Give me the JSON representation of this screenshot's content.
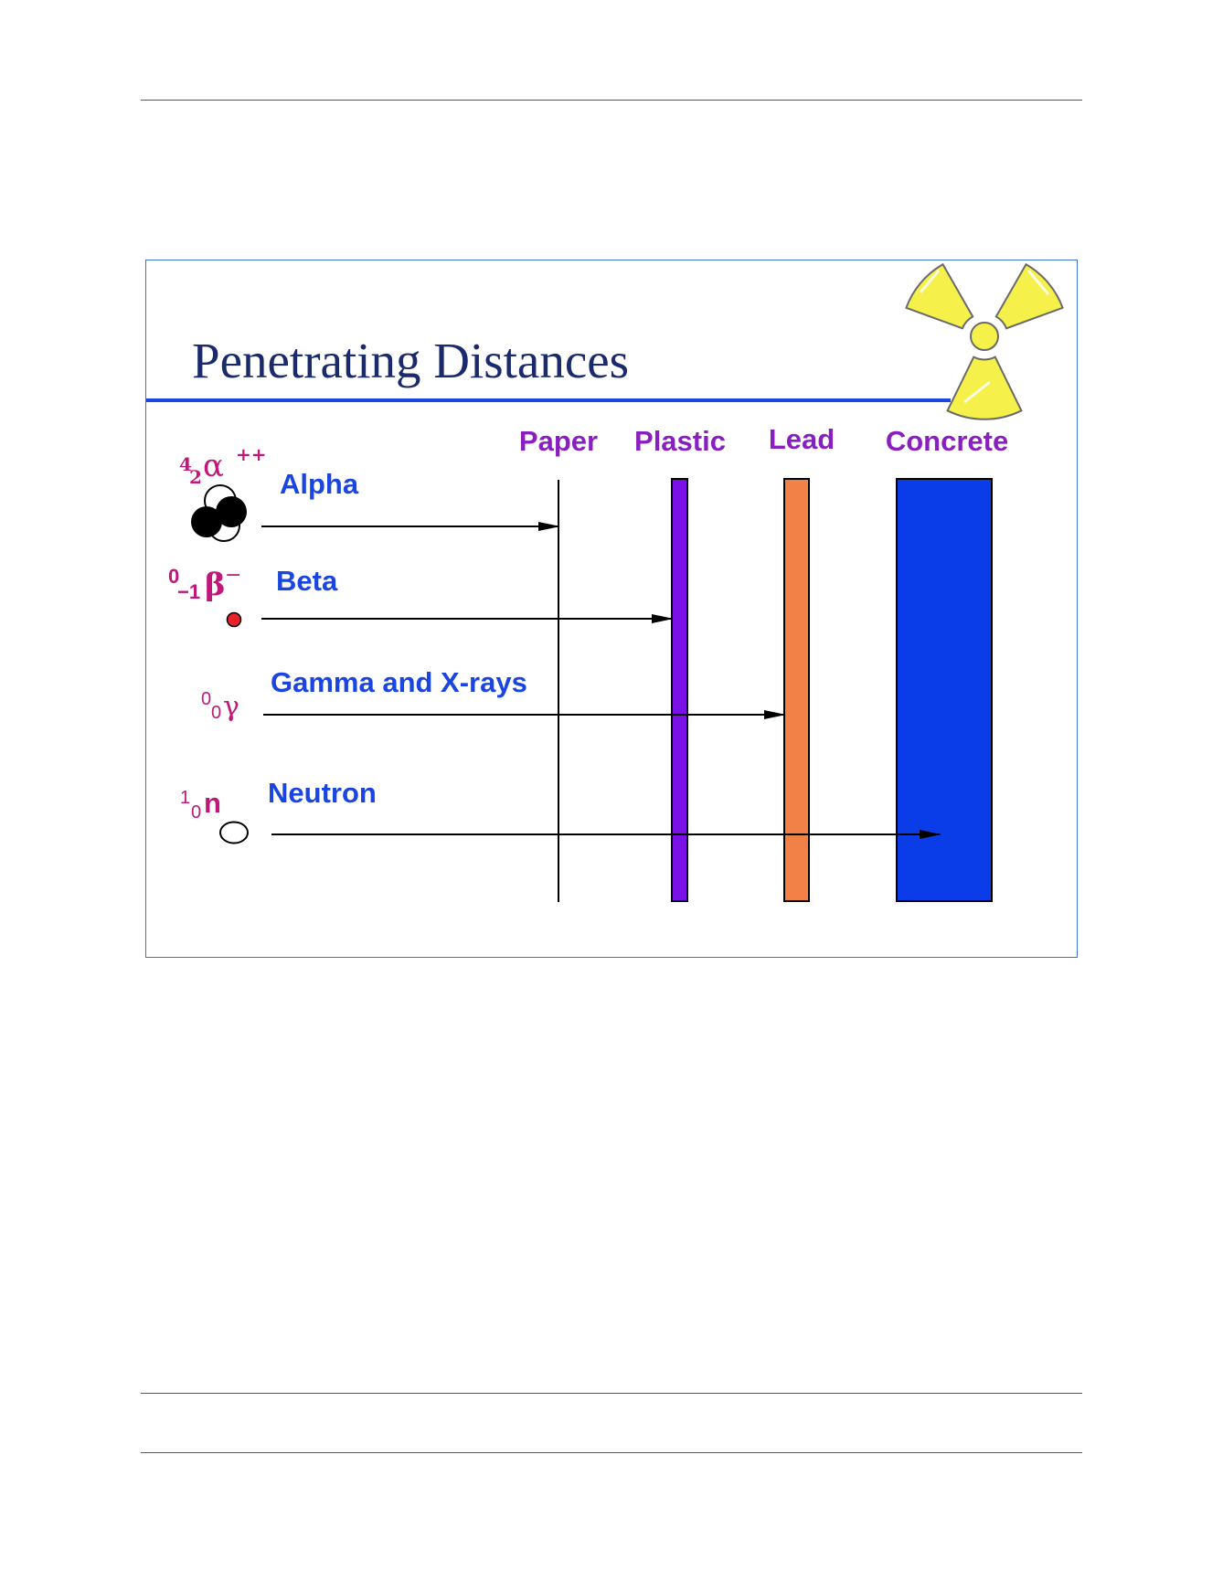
{
  "title": "Penetrating Distances",
  "materials": [
    {
      "label": "Paper",
      "color": "#000000"
    },
    {
      "label": "Plastic",
      "color": "#7a12e8"
    },
    {
      "label": "Lead",
      "color": "#f28148"
    },
    {
      "label": "Concrete",
      "color": "#0a3de8"
    }
  ],
  "radiation": [
    {
      "label": "Alpha",
      "symbol": "α",
      "superscript": "4",
      "subscript": "2",
      "charge": "++",
      "stops_at": "Paper"
    },
    {
      "label": "Beta",
      "symbol": "β",
      "superscript": "0",
      "subscript": "−1",
      "charge": "−",
      "stops_at": "Plastic"
    },
    {
      "label": "Gamma and X-rays",
      "symbol": "γ",
      "superscript": "0",
      "subscript": "0",
      "charge": "",
      "stops_at": "Lead"
    },
    {
      "label": "Neutron",
      "symbol": "n",
      "superscript": "1",
      "subscript": "0",
      "charge": "",
      "stops_at": "Concrete"
    }
  ],
  "colors": {
    "title": "#1b2a6b",
    "title_rule": "#1a45e0",
    "material_label": "#8a1fc0",
    "radiation_label": "#1a45e0",
    "symbol": "#c0187a",
    "trefoil": "#f5f04a"
  },
  "icons": [
    "radiation-trefoil-icon",
    "alpha-particle-icon",
    "beta-particle-icon",
    "neutron-particle-icon"
  ]
}
